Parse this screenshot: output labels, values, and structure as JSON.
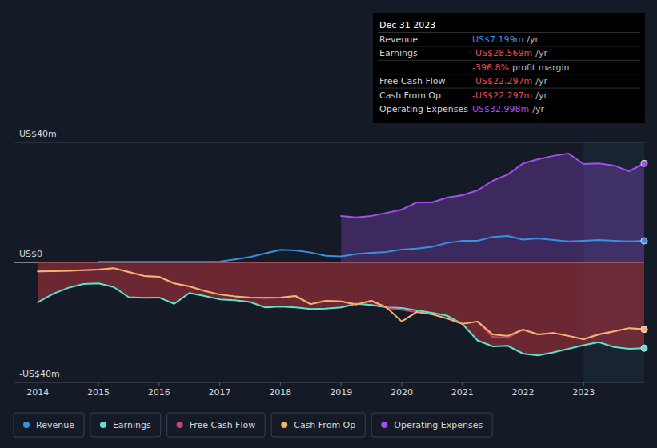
{
  "chart_data": {
    "type": "line",
    "x": [
      2014,
      2014.25,
      2014.5,
      2014.75,
      2015,
      2015.25,
      2015.5,
      2015.75,
      2016,
      2016.25,
      2016.5,
      2016.75,
      2017,
      2017.25,
      2017.5,
      2017.75,
      2018,
      2018.25,
      2018.5,
      2018.75,
      2019,
      2019.25,
      2019.5,
      2019.75,
      2020,
      2020.25,
      2020.5,
      2020.75,
      2021,
      2021.25,
      2021.5,
      2021.75,
      2022,
      2022.25,
      2022.5,
      2022.75,
      2023,
      2023.25,
      2023.5,
      2023.75,
      2024
    ],
    "xlim": [
      2013.6,
      2024
    ],
    "xticks": [
      2014,
      2015,
      2016,
      2017,
      2018,
      2019,
      2020,
      2021,
      2022,
      2023
    ],
    "ylim": [
      -40,
      40
    ],
    "yticks": [
      {
        "value": 40,
        "label": "US$40m"
      },
      {
        "value": 0,
        "label": "US$0"
      },
      {
        "value": -40,
        "label": "-US$40m"
      }
    ],
    "grid": true,
    "legend": "bottom",
    "series": [
      {
        "name": "Revenue",
        "color": "#3b8fe3",
        "values": [
          null,
          null,
          null,
          null,
          0.2,
          0.2,
          0.2,
          0.2,
          0.2,
          0.2,
          0.2,
          0.2,
          0.3,
          1,
          1.8,
          3,
          4.2,
          4,
          3.3,
          2.2,
          2,
          2.8,
          3.2,
          3.5,
          4.3,
          4.6,
          5.2,
          6.5,
          7.2,
          7.2,
          8.5,
          8.8,
          7.6,
          8,
          7.5,
          7,
          7.2,
          7.5,
          7.2,
          7,
          7.199
        ]
      },
      {
        "name": "Earnings",
        "color": "#5ee3c9",
        "values": [
          -13.3,
          -10.5,
          -8.5,
          -7.2,
          -7,
          -8.2,
          -11.6,
          -11.8,
          -11.7,
          -13.8,
          -10.2,
          -11.2,
          -12.3,
          -12.6,
          -13.2,
          -15,
          -14.7,
          -15,
          -15.5,
          -15.4,
          -15,
          -13.8,
          -14.2,
          -15,
          -15.2,
          -16,
          -16.8,
          -17.8,
          -20.5,
          -26,
          -28,
          -27.8,
          -30.4,
          -31,
          -30,
          -28.8,
          -27.6,
          -26.6,
          -28.2,
          -28.8,
          -28.569
        ]
      },
      {
        "name": "Free Cash Flow",
        "color": "#cf3f78",
        "values": [
          -3,
          -2.9,
          -2.8,
          -2.6,
          -2.4,
          -1.9,
          -3.2,
          -4.5,
          -4.8,
          -7,
          -8,
          -9.5,
          -10.7,
          -11.3,
          -11.7,
          -11.8,
          -11.7,
          -11.2,
          -13.9,
          -12.8,
          -13,
          -14,
          -12.8,
          -15.2,
          -15.8,
          -16.6,
          -17.3,
          -18.7,
          -20.5,
          -19.7,
          -24.8,
          -25.2,
          -22.4,
          -24,
          -23.5,
          -24.5,
          -25.6,
          -24,
          -23,
          -21.9,
          -22.297
        ]
      },
      {
        "name": "Cash From Op",
        "color": "#f2b56b",
        "values": [
          -3,
          -2.9,
          -2.8,
          -2.6,
          -2.4,
          -1.9,
          -3.2,
          -4.5,
          -4.8,
          -7,
          -8,
          -9.5,
          -10.7,
          -11.3,
          -11.7,
          -11.8,
          -11.7,
          -11.2,
          -13.9,
          -12.8,
          -13,
          -14,
          -12.8,
          -15,
          -19.7,
          -16.5,
          -17.3,
          -18.7,
          -20.5,
          -19.7,
          -24,
          -24.5,
          -22.4,
          -24,
          -23.5,
          -24.5,
          -25.6,
          -24,
          -23,
          -21.9,
          -22.297
        ]
      },
      {
        "name": "Operating Expenses",
        "color": "#a24ff0",
        "type": "area",
        "values": [
          null,
          null,
          null,
          null,
          null,
          null,
          null,
          null,
          null,
          null,
          null,
          null,
          null,
          null,
          null,
          null,
          null,
          null,
          null,
          null,
          15.5,
          15,
          15.5,
          16.5,
          17.6,
          20,
          20,
          21.6,
          22.4,
          24,
          27.2,
          29.3,
          33,
          34.4,
          35.5,
          36.3,
          32.8,
          33,
          32.3,
          30.4,
          32.998
        ]
      }
    ],
    "annotations": [
      {
        "title": "Dec 31 2023",
        "rows": [
          {
            "label": "Revenue",
            "value": "US$7.199m",
            "unit": "/yr",
            "color": "#3b8fe3"
          },
          {
            "label": "Earnings",
            "value": "-US$28.569m",
            "unit": "/yr",
            "color": "#e5484d"
          },
          {
            "value": "-396.8%",
            "unit": "profit margin",
            "color": "#e5484d"
          },
          {
            "label": "Free Cash Flow",
            "value": "-US$22.297m",
            "unit": "/yr",
            "color": "#e5484d"
          },
          {
            "label": "Cash From Op",
            "value": "-US$22.297m",
            "unit": "/yr",
            "color": "#e5484d"
          },
          {
            "label": "Operating Expenses",
            "value": "US$32.998m",
            "unit": "/yr",
            "color": "#a24ff0"
          }
        ]
      }
    ]
  }
}
